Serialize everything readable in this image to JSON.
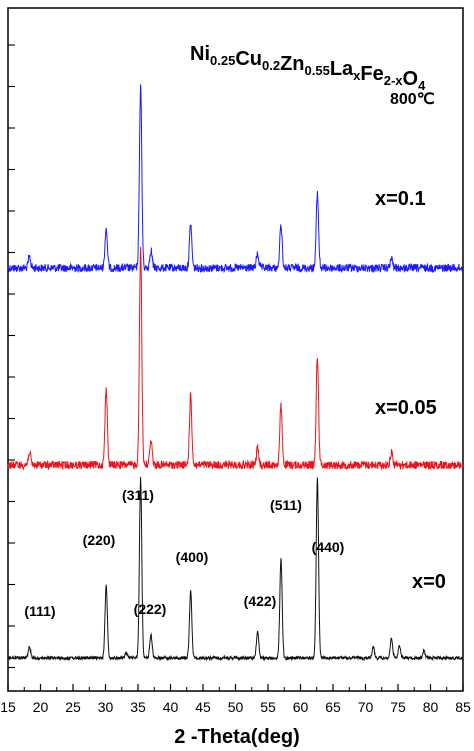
{
  "chart_data": {
    "type": "line",
    "title": "",
    "xlabel": "2 -Theta(deg)",
    "ylabel": "",
    "xlim": [
      15,
      85
    ],
    "x_ticks": [
      "15",
      "20",
      "25",
      "30",
      "35",
      "40",
      "45",
      "50",
      "55",
      "60",
      "65",
      "70",
      "75",
      "80",
      "85"
    ],
    "grid": false,
    "legend": "none",
    "annotations": {
      "composition_base": "Ni",
      "composition_parts": [
        {
          "text": "Ni",
          "sub": "0.25"
        },
        {
          "text": "Cu",
          "sub": "0.2"
        },
        {
          "text": "Zn",
          "sub": "0.55"
        },
        {
          "text": "La",
          "sub": "x"
        },
        {
          "text": "Fe",
          "sub": "2-x"
        },
        {
          "text": "O",
          "sub": "4"
        }
      ],
      "temperature": "800℃"
    },
    "miller_indices": [
      {
        "label": "(111)",
        "x": 18.3
      },
      {
        "label": "(220)",
        "x": 30.1
      },
      {
        "label": "(311)",
        "x": 35.4
      },
      {
        "label": "(222)",
        "x": 37.0
      },
      {
        "label": "(400)",
        "x": 43.1
      },
      {
        "label": "(422)",
        "x": 53.4
      },
      {
        "label": "(511)",
        "x": 57.0
      },
      {
        "label": "(440)",
        "x": 62.6
      }
    ],
    "series": [
      {
        "name": "x=0.1",
        "color": "#1a1aff",
        "peaks": [
          {
            "x": 18.3,
            "h": 0.06
          },
          {
            "x": 30.1,
            "h": 0.22
          },
          {
            "x": 35.4,
            "h": 1.0
          },
          {
            "x": 37.0,
            "h": 0.1
          },
          {
            "x": 43.1,
            "h": 0.24
          },
          {
            "x": 53.4,
            "h": 0.08
          },
          {
            "x": 57.0,
            "h": 0.24
          },
          {
            "x": 62.6,
            "h": 0.41
          },
          {
            "x": 74.0,
            "h": 0.05
          }
        ]
      },
      {
        "name": "x=0.05",
        "color": "#e8141e",
        "peaks": [
          {
            "x": 18.3,
            "h": 0.06
          },
          {
            "x": 30.1,
            "h": 0.35
          },
          {
            "x": 35.4,
            "h": 1.0
          },
          {
            "x": 37.0,
            "h": 0.12
          },
          {
            "x": 43.1,
            "h": 0.32
          },
          {
            "x": 53.4,
            "h": 0.08
          },
          {
            "x": 57.0,
            "h": 0.27
          },
          {
            "x": 62.6,
            "h": 0.5
          },
          {
            "x": 74.0,
            "h": 0.06
          }
        ]
      },
      {
        "name": "x=0",
        "color": "#111111",
        "peaks": [
          {
            "x": 18.3,
            "h": 0.06
          },
          {
            "x": 30.1,
            "h": 0.4
          },
          {
            "x": 33.2,
            "h": 0.03
          },
          {
            "x": 35.4,
            "h": 1.0
          },
          {
            "x": 37.0,
            "h": 0.13
          },
          {
            "x": 43.1,
            "h": 0.37
          },
          {
            "x": 53.4,
            "h": 0.15
          },
          {
            "x": 57.0,
            "h": 0.55
          },
          {
            "x": 62.6,
            "h": 1.0
          },
          {
            "x": 71.2,
            "h": 0.06
          },
          {
            "x": 74.0,
            "h": 0.11
          },
          {
            "x": 75.2,
            "h": 0.07
          },
          {
            "x": 79.0,
            "h": 0.04
          }
        ]
      }
    ]
  }
}
